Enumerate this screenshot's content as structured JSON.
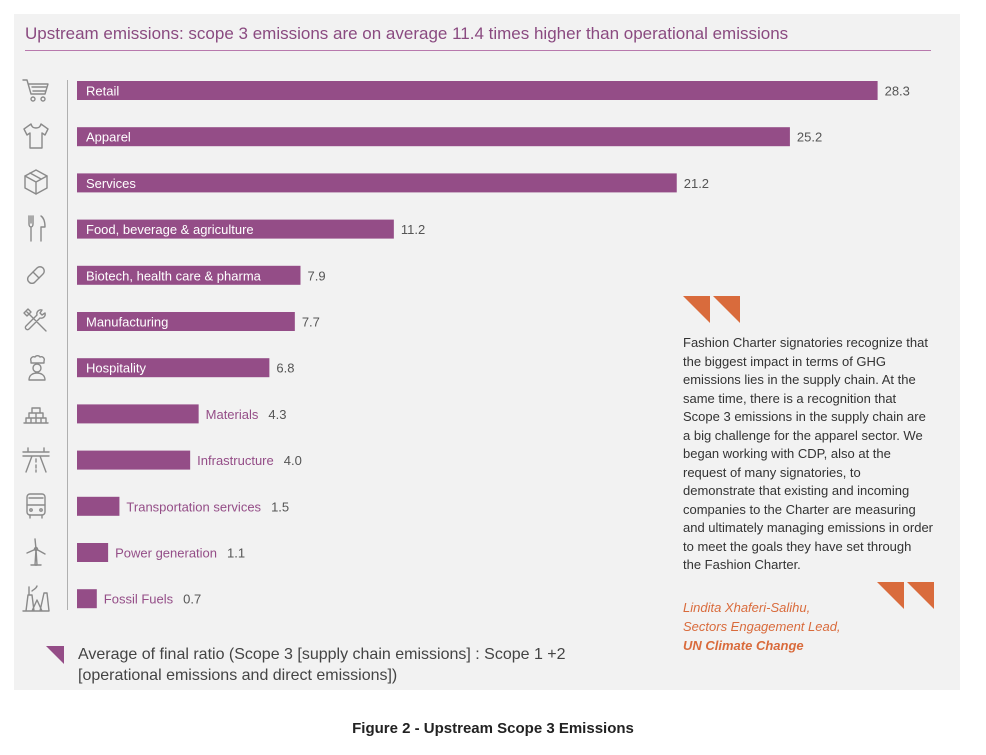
{
  "chart_data": {
    "type": "bar",
    "orientation": "horizontal",
    "title": "Upstream emissions: scope 3 emissions are on average 11.4 times higher than operational emissions",
    "categories": [
      "Retail",
      "Apparel",
      "Services",
      "Food, beverage & agriculture",
      "Biotech, health care & pharma",
      "Manufacturing",
      "Hospitality",
      "Materials",
      "Infrastructure",
      "Transportation services",
      "Power generation",
      "Fossil Fuels"
    ],
    "values": [
      28.3,
      25.2,
      21.2,
      11.2,
      7.9,
      7.7,
      6.8,
      4.3,
      4.0,
      1.5,
      1.1,
      0.7
    ],
    "value_labels": [
      "28.3",
      "25.2",
      "21.2",
      "11.2",
      "7.9",
      "7.7",
      "6.8",
      "4.3",
      "4.0",
      "1.5",
      "1.1",
      "0.7"
    ],
    "icons": [
      "shopping-cart-icon",
      "shirt-icon",
      "box-icon",
      "fork-knife-icon",
      "pill-icon",
      "wrench-screwdriver-icon",
      "chef-icon",
      "bricks-icon",
      "highway-icon",
      "bus-icon",
      "wind-turbine-icon",
      "factory-icon"
    ],
    "legend": "Average of final ratio (Scope 3 [supply chain emissions] : Scope 1 +2 [operational emissions and direct emissions])",
    "bar_color": "#944d87",
    "grid": false
  },
  "quote": {
    "text": "Fashion Charter signatories recognize that the biggest impact in terms of GHG emissions lies in the supply chain. At the same time, there is a recognition that Scope 3 emissions in the supply chain are a big challenge for the apparel sector. We began working with CDP, also at the request of many signatories, to demonstrate that existing and incoming companies to the Charter are measuring and ultimately managing emissions in order to meet the goals they have set through the Fashion Charter.",
    "author": "Lindita Xhaferi-Salihu,",
    "role": "Sectors Engagement Lead,",
    "org": "UN Climate Change",
    "accent_color": "#d96b3c"
  },
  "caption": "Figure 2 - Upstream Scope 3 Emissions"
}
